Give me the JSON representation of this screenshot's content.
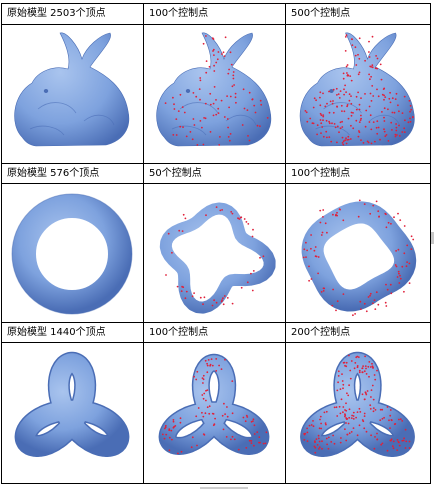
{
  "colors": {
    "mesh_light": "#a9c4ee",
    "mesh_mid": "#7ea2de",
    "mesh_dark": "#4a6db5",
    "control_point": "#e0203a",
    "grid_line": "#000000"
  },
  "rows": [
    {
      "shape": "bunny",
      "cells": [
        {
          "caption": "原始模型 2503个顶点",
          "control_points": 0
        },
        {
          "caption": "100个控制点",
          "control_points": 100
        },
        {
          "caption": "500个控制点",
          "control_points": 500
        }
      ]
    },
    {
      "shape": "torus",
      "cells": [
        {
          "caption": "原始模型 576个顶点",
          "control_points": 0
        },
        {
          "caption": "50个控制点",
          "control_points": 50
        },
        {
          "caption": "100个控制点",
          "control_points": 100
        }
      ]
    },
    {
      "shape": "knot",
      "cells": [
        {
          "caption": "原始模型 1440个顶点",
          "control_points": 0
        },
        {
          "caption": "100个控制点",
          "control_points": 100
        },
        {
          "caption": "200个控制点",
          "control_points": 200
        }
      ]
    }
  ]
}
